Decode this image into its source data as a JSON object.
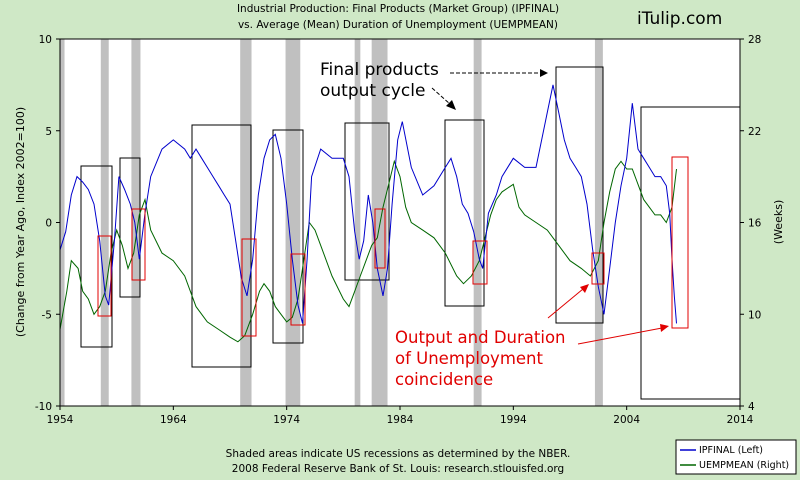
{
  "header": {
    "title_line1": "Industrial Production: Final Products (Market Group) (IPFINAL)",
    "title_line2": "vs.  Average (Mean) Duration of Unemployment (UEMPMEAN)",
    "brand": "iTulip.com"
  },
  "annotations": {
    "final_products_line1": "Final products",
    "final_products_line2": "output cycle",
    "coincidence_line1": "Output and Duration",
    "coincidence_line2": "of Unemployment",
    "coincidence_line3": "coincidence"
  },
  "footer": {
    "line1": "Shaded areas indicate US recessions as determined by the NBER.",
    "line2": "2008 Federal Reserve Bank of St. Louis: research.stlouisfed.org"
  },
  "colors": {
    "background": "#cfe8c6",
    "plot": "#ffffff",
    "recession": "#c0c0c0",
    "ipfinal": "#0000cc",
    "uempmean": "#006600",
    "annotation_red": "#e00000"
  },
  "chart_data": {
    "type": "line",
    "xlim": [
      1954,
      2014
    ],
    "x_ticks": [
      "1954",
      "1964",
      "1974",
      "1984",
      "1994",
      "2004",
      "2014"
    ],
    "left_axis": {
      "label": "(Change from Year Ago, Index 2002=100)",
      "ylim": [
        -10,
        10
      ],
      "ticks": [
        "10",
        "5",
        "0",
        "-5",
        "-10"
      ]
    },
    "right_axis": {
      "label": "(Weeks)",
      "ylim": [
        4,
        28
      ],
      "ticks": [
        "28",
        "22",
        "16",
        "10",
        "4"
      ]
    },
    "grid": false,
    "legend_position": "bottom-right",
    "recessions": [
      [
        1953.6,
        1954.4
      ],
      [
        1957.6,
        1958.3
      ],
      [
        1960.3,
        1961.1
      ],
      [
        1969.9,
        1970.9
      ],
      [
        1973.9,
        1975.2
      ],
      [
        1980.0,
        1980.5
      ],
      [
        1981.5,
        1982.9
      ],
      [
        1990.5,
        1991.2
      ],
      [
        2001.2,
        2001.9
      ]
    ],
    "series": [
      {
        "name": "IPFINAL (Left)",
        "axis": "left",
        "x": [
          1954.0,
          1954.5,
          1955.0,
          1955.5,
          1956.0,
          1956.5,
          1957.0,
          1957.5,
          1958.0,
          1958.3,
          1958.8,
          1959.2,
          1959.7,
          1960.2,
          1960.6,
          1961.0,
          1961.5,
          1962.0,
          1963.0,
          1964.0,
          1965.0,
          1965.5,
          1966.0,
          1966.5,
          1967.0,
          1967.5,
          1968.0,
          1968.5,
          1969.0,
          1969.5,
          1970.0,
          1970.5,
          1971.0,
          1971.5,
          1972.0,
          1972.5,
          1973.0,
          1973.5,
          1974.0,
          1974.5,
          1975.0,
          1975.4,
          1975.8,
          1976.2,
          1977.0,
          1978.0,
          1979.0,
          1979.5,
          1980.0,
          1980.4,
          1980.8,
          1981.2,
          1981.6,
          1982.0,
          1982.5,
          1982.9,
          1983.3,
          1983.8,
          1984.2,
          1985.0,
          1986.0,
          1987.0,
          1988.0,
          1988.5,
          1989.0,
          1989.5,
          1990.0,
          1990.5,
          1991.0,
          1991.3,
          1991.8,
          1992.5,
          1993.0,
          1994.0,
          1995.0,
          1996.0,
          1997.0,
          1997.5,
          1998.0,
          1998.5,
          1999.0,
          1999.5,
          2000.0,
          2000.5,
          2001.0,
          2001.5,
          2002.0,
          2002.5,
          2003.0,
          2003.5,
          2004.0,
          2004.5,
          2005.0,
          2005.5,
          2006.0,
          2006.5,
          2007.0,
          2007.5,
          2007.8,
          2008.0,
          2008.2,
          2008.4
        ],
        "values": [
          -1.5,
          -0.5,
          1.5,
          2.5,
          2.2,
          1.8,
          1.0,
          -1.0,
          -4.0,
          -4.5,
          -1.0,
          2.5,
          1.8,
          1.0,
          0.0,
          -2.0,
          0.5,
          2.5,
          4.0,
          4.5,
          4.0,
          3.5,
          4.0,
          3.5,
          3.0,
          2.5,
          2.0,
          1.5,
          1.0,
          -1.0,
          -3.0,
          -4.0,
          -2.0,
          1.5,
          3.5,
          4.5,
          4.8,
          3.5,
          1.0,
          -2.0,
          -4.5,
          -5.5,
          -2.0,
          2.5,
          4.0,
          3.5,
          3.5,
          2.5,
          -0.5,
          -2.0,
          -1.0,
          1.5,
          0.0,
          -2.5,
          -4.0,
          -2.5,
          1.0,
          4.5,
          5.5,
          3.0,
          1.5,
          2.0,
          3.0,
          3.5,
          2.5,
          1.0,
          0.5,
          -0.5,
          -2.0,
          -2.5,
          0.5,
          1.5,
          2.5,
          3.5,
          3.0,
          3.0,
          6.0,
          7.5,
          6.0,
          4.5,
          3.5,
          3.0,
          2.5,
          1.0,
          -1.5,
          -3.5,
          -5.0,
          -2.5,
          0.0,
          2.0,
          3.5,
          6.5,
          4.0,
          3.5,
          3.0,
          2.5,
          2.5,
          2.0,
          0.5,
          -2.0,
          -4.0,
          -5.5
        ]
      },
      {
        "name": "UEMPMEAN (Right)",
        "axis": "right",
        "x": [
          1954.0,
          1954.6,
          1955.0,
          1955.6,
          1956.0,
          1956.5,
          1957.0,
          1957.5,
          1958.0,
          1958.5,
          1959.0,
          1959.5,
          1960.0,
          1960.5,
          1961.0,
          1961.5,
          1962.0,
          1963.0,
          1964.0,
          1965.0,
          1966.0,
          1967.0,
          1968.0,
          1969.0,
          1969.7,
          1970.3,
          1971.0,
          1971.6,
          1972.0,
          1972.5,
          1973.0,
          1973.5,
          1974.0,
          1974.5,
          1975.0,
          1975.6,
          1976.0,
          1976.5,
          1977.0,
          1978.0,
          1979.0,
          1979.5,
          1980.0,
          1980.5,
          1981.0,
          1981.5,
          1982.0,
          1982.5,
          1983.0,
          1983.5,
          1984.0,
          1984.5,
          1985.0,
          1986.0,
          1987.0,
          1988.0,
          1989.0,
          1989.6,
          1990.3,
          1991.0,
          1991.5,
          1992.0,
          1992.5,
          1993.0,
          1994.0,
          1994.5,
          1995.0,
          1996.0,
          1997.0,
          1998.0,
          1999.0,
          2000.0,
          2000.8,
          2001.5,
          2002.0,
          2002.5,
          2003.0,
          2003.5,
          2004.0,
          2004.5,
          2005.0,
          2005.5,
          2006.0,
          2006.5,
          2007.0,
          2007.5,
          2008.0,
          2008.4
        ],
        "values": [
          9.0,
          11.5,
          13.5,
          13.0,
          11.5,
          11.0,
          10.0,
          10.5,
          11.5,
          14.0,
          15.5,
          14.5,
          13.0,
          14.0,
          16.5,
          17.5,
          15.5,
          14.0,
          13.5,
          12.5,
          10.5,
          9.5,
          9.0,
          8.5,
          8.2,
          8.6,
          10.0,
          11.5,
          12.0,
          11.5,
          10.5,
          10.0,
          9.5,
          9.8,
          11.0,
          14.0,
          16.0,
          15.5,
          14.5,
          12.5,
          11.0,
          10.5,
          11.5,
          12.5,
          13.5,
          14.5,
          15.0,
          17.0,
          18.5,
          20.0,
          19.0,
          17.0,
          16.0,
          15.5,
          15.0,
          14.0,
          12.5,
          12.0,
          12.5,
          13.5,
          15.0,
          16.5,
          17.5,
          18.0,
          18.5,
          17.0,
          16.5,
          16.0,
          15.5,
          14.5,
          13.5,
          13.0,
          12.5,
          13.5,
          16.0,
          18.0,
          19.5,
          20.0,
          19.5,
          19.5,
          18.5,
          17.5,
          17.0,
          16.5,
          16.5,
          16.0,
          17.0,
          19.5
        ]
      }
    ]
  }
}
